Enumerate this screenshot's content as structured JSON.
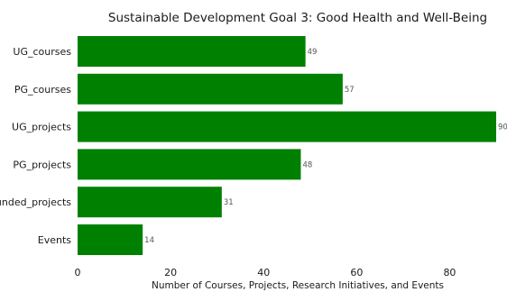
{
  "chart_data": {
    "type": "bar",
    "orientation": "horizontal",
    "title": "Sustainable Development Goal 3: Good Health and Well-Being",
    "categories": [
      "UG_courses",
      "PG_courses",
      "UG_projects",
      "PG_projects",
      "Funded_projects",
      "Events"
    ],
    "values": [
      49,
      57,
      90,
      48,
      31,
      14
    ],
    "xlabel": "Number of Courses, Projects, Research Initiatives, and Events",
    "ylabel": "",
    "xlim": [
      0,
      90
    ],
    "xticks": [
      0,
      20,
      40,
      60,
      80
    ],
    "bar_color": "#008000",
    "grid": false,
    "legend": "none"
  }
}
